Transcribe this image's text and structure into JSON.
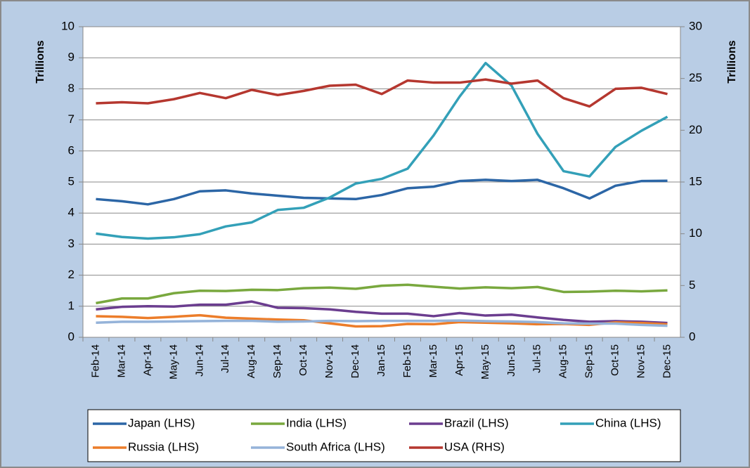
{
  "chart_data": {
    "type": "line",
    "y_label": "Trillions",
    "y2_label": "Trillions",
    "categories": [
      "Feb-14",
      "Mar-14",
      "Apr-14",
      "May-14",
      "Jun-14",
      "Jul-14",
      "Aug-14",
      "Sep-14",
      "Oct-14",
      "Nov-14",
      "Dec-14",
      "Jan-15",
      "Feb-15",
      "Mar-15",
      "Apr-15",
      "May-15",
      "Jun-15",
      "Jul-15",
      "Aug-15",
      "Sep-15",
      "Oct-15",
      "Nov-15",
      "Dec-15"
    ],
    "ylim": [
      0,
      10
    ],
    "yticks": [
      0,
      1,
      2,
      3,
      4,
      5,
      6,
      7,
      8,
      9,
      10
    ],
    "y2lim": [
      0,
      30
    ],
    "y2ticks": [
      0,
      5,
      10,
      15,
      20,
      25,
      30
    ],
    "grid": true,
    "series": [
      {
        "name": "Japan (LHS)",
        "color": "#2c66a6",
        "values": [
          4.45,
          4.38,
          4.28,
          4.45,
          4.7,
          4.73,
          4.63,
          4.56,
          4.49,
          4.47,
          4.45,
          4.58,
          4.8,
          4.85,
          5.03,
          5.07,
          5.03,
          5.07,
          4.8,
          4.47,
          4.88,
          5.03,
          5.04
        ]
      },
      {
        "name": "India (LHS)",
        "color": "#79a83e",
        "values": [
          1.1,
          1.25,
          1.25,
          1.42,
          1.5,
          1.49,
          1.53,
          1.52,
          1.58,
          1.6,
          1.56,
          1.66,
          1.69,
          1.63,
          1.57,
          1.61,
          1.58,
          1.62,
          1.46,
          1.47,
          1.5,
          1.48,
          1.51
        ]
      },
      {
        "name": "Brazil (LHS)",
        "color": "#6b3d8f",
        "values": [
          0.9,
          0.98,
          1.0,
          0.99,
          1.05,
          1.05,
          1.15,
          0.95,
          0.94,
          0.9,
          0.82,
          0.76,
          0.76,
          0.68,
          0.78,
          0.7,
          0.73,
          0.64,
          0.56,
          0.5,
          0.52,
          0.5,
          0.46
        ]
      },
      {
        "name": "China (LHS)",
        "color": "#33a0b8",
        "values": [
          3.34,
          3.23,
          3.18,
          3.22,
          3.32,
          3.57,
          3.7,
          4.1,
          4.17,
          4.5,
          4.95,
          5.1,
          5.43,
          6.5,
          7.75,
          8.83,
          8.1,
          6.55,
          5.35,
          5.18,
          6.13,
          6.65,
          7.1
        ]
      },
      {
        "name": "Russia (LHS)",
        "color": "#ec7d2a",
        "values": [
          0.68,
          0.66,
          0.62,
          0.66,
          0.71,
          0.63,
          0.6,
          0.57,
          0.55,
          0.45,
          0.35,
          0.36,
          0.43,
          0.42,
          0.49,
          0.47,
          0.45,
          0.42,
          0.43,
          0.4,
          0.48,
          0.46,
          0.42
        ]
      },
      {
        "name": "South Africa (LHS)",
        "color": "#95b3d9",
        "values": [
          0.47,
          0.5,
          0.5,
          0.51,
          0.52,
          0.53,
          0.53,
          0.5,
          0.51,
          0.53,
          0.52,
          0.53,
          0.53,
          0.53,
          0.54,
          0.52,
          0.51,
          0.49,
          0.45,
          0.44,
          0.44,
          0.4,
          0.37
        ]
      },
      {
        "name": "USA (RHS)",
        "color": "#b5372f",
        "axis": "y2",
        "values": [
          22.6,
          22.7,
          22.6,
          23.0,
          23.6,
          23.1,
          23.9,
          23.4,
          23.8,
          24.3,
          24.4,
          23.5,
          24.8,
          24.6,
          24.6,
          24.9,
          24.5,
          24.8,
          23.1,
          22.3,
          24.0,
          24.1,
          23.5
        ]
      }
    ]
  }
}
